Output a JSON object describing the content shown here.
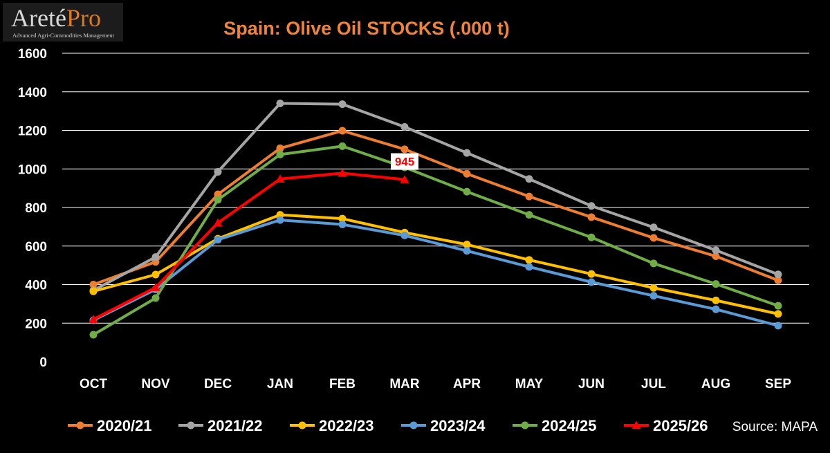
{
  "logo": {
    "name_main": "Areté",
    "name_accent": "Pro",
    "tagline": "Advanced Agri-Commodities Management"
  },
  "source": "Source: MAPA",
  "colors": {
    "background": "#000000",
    "title": "#f0843c",
    "axis_text": "#ffffff",
    "grid": "#ffffff"
  },
  "chart_data": {
    "type": "line",
    "title": "Spain: Olive Oil STOCKS (.000 t)",
    "xlabel": "",
    "ylabel": "",
    "ylim": [
      0,
      1600
    ],
    "yticks": [
      0,
      200,
      400,
      600,
      800,
      1000,
      1200,
      1400,
      1600
    ],
    "grid": true,
    "legend_position": "bottom",
    "categories": [
      "OCT",
      "NOV",
      "DEC",
      "JAN",
      "FEB",
      "MAR",
      "APR",
      "MAY",
      "JUN",
      "JUL",
      "AUG",
      "SEP"
    ],
    "series": [
      {
        "name": "2020/21",
        "color": "#ed7d31",
        "marker": "circle",
        "values": [
          400,
          518,
          868,
          1107,
          1198,
          1102,
          975,
          857,
          750,
          642,
          547,
          422
        ]
      },
      {
        "name": "2021/22",
        "color": "#a5a5a5",
        "marker": "circle",
        "values": [
          370,
          543,
          985,
          1340,
          1336,
          1218,
          1083,
          948,
          808,
          697,
          578,
          453
        ]
      },
      {
        "name": "2022/23",
        "color": "#ffc000",
        "marker": "circle",
        "values": [
          365,
          452,
          638,
          762,
          742,
          670,
          608,
          528,
          455,
          383,
          318,
          248
        ]
      },
      {
        "name": "2023/24",
        "color": "#5b9bd5",
        "marker": "circle",
        "values": [
          215,
          375,
          633,
          735,
          712,
          655,
          575,
          492,
          413,
          342,
          272,
          187
        ]
      },
      {
        "name": "2024/25",
        "color": "#70ad47",
        "marker": "circle",
        "values": [
          140,
          330,
          840,
          1075,
          1118,
          1008,
          882,
          762,
          645,
          510,
          403,
          290
        ]
      },
      {
        "name": "2025/26",
        "color": "#ff0000",
        "marker": "triangle",
        "values": [
          220,
          385,
          720,
          948,
          978,
          945,
          null,
          null,
          null,
          null,
          null,
          null
        ]
      }
    ],
    "annotations": [
      {
        "text": "945",
        "series": "2025/26",
        "category": "MAR"
      }
    ]
  }
}
